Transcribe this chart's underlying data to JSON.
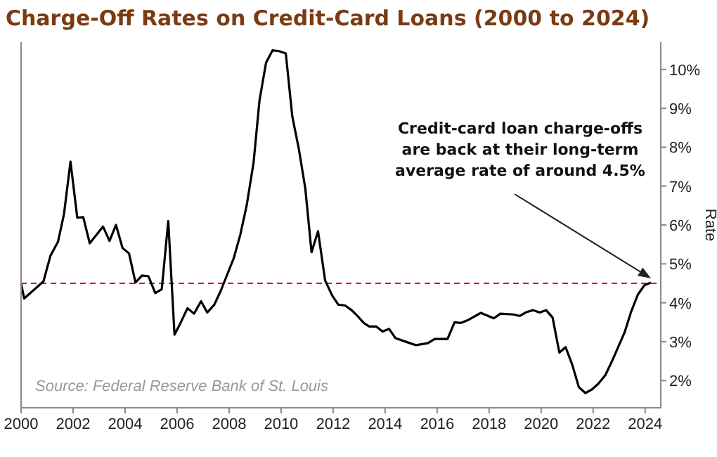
{
  "chart_data": {
    "type": "line",
    "title": "Charge-Off Rates on Credit-Card Loans (2000 to 2024)",
    "ylabel": "Rate",
    "x": [
      2000.0,
      2000.12,
      2000.86,
      2001.13,
      2001.42,
      2001.65,
      2001.9,
      2002.16,
      2002.39,
      2002.64,
      2003.15,
      2003.4,
      2003.65,
      2003.9,
      2004.15,
      2004.4,
      2004.65,
      2004.9,
      2005.16,
      2005.41,
      2005.66,
      2005.9,
      2006.13,
      2006.4,
      2006.65,
      2006.92,
      2007.16,
      2007.43,
      2007.68,
      2008.18,
      2008.43,
      2008.68,
      2008.94,
      2009.17,
      2009.42,
      2009.67,
      2009.92,
      2010.18,
      2010.43,
      2010.68,
      2010.93,
      2011.17,
      2011.42,
      2011.69,
      2011.96,
      2012.2,
      2012.46,
      2012.71,
      2012.94,
      2013.18,
      2013.39,
      2013.66,
      2013.9,
      2014.15,
      2014.4,
      2014.92,
      2015.19,
      2015.64,
      2015.91,
      2016.4,
      2016.67,
      2016.9,
      2017.17,
      2017.68,
      2018.18,
      2018.43,
      2018.93,
      2019.18,
      2019.43,
      2019.69,
      2019.94,
      2020.19,
      2020.44,
      2020.7,
      2020.94,
      2021.2,
      2021.45,
      2021.7,
      2021.95,
      2022.2,
      2022.47,
      2022.74,
      2023.21,
      2023.46,
      2023.72,
      2023.97,
      2024.22
    ],
    "series": [
      {
        "color": "#000000",
        "values": [
          4.49,
          4.11,
          4.55,
          5.21,
          5.57,
          6.28,
          7.63,
          6.19,
          6.2,
          5.53,
          5.96,
          5.59,
          6.0,
          5.41,
          5.27,
          4.52,
          4.7,
          4.68,
          4.25,
          4.35,
          6.1,
          3.18,
          3.48,
          3.86,
          3.72,
          4.04,
          3.75,
          3.95,
          4.31,
          5.15,
          5.75,
          6.52,
          7.6,
          9.21,
          10.17,
          10.49,
          10.47,
          10.41,
          8.79,
          7.96,
          6.94,
          5.3,
          5.84,
          4.58,
          4.19,
          3.95,
          3.93,
          3.81,
          3.66,
          3.48,
          3.39,
          3.39,
          3.26,
          3.33,
          3.09,
          2.97,
          2.91,
          2.96,
          3.07,
          3.07,
          3.5,
          3.48,
          3.55,
          3.74,
          3.6,
          3.72,
          3.7,
          3.66,
          3.76,
          3.81,
          3.75,
          3.81,
          3.62,
          2.72,
          2.86,
          2.4,
          1.83,
          1.68,
          1.77,
          1.92,
          2.14,
          2.52,
          3.24,
          3.77,
          4.21,
          4.45,
          4.52
        ]
      }
    ],
    "xlim": [
      2000,
      2024.6
    ],
    "xticks": [
      2000,
      2002,
      2004,
      2006,
      2008,
      2010,
      2012,
      2014,
      2016,
      2018,
      2020,
      2022,
      2024
    ],
    "ylim": [
      1.3,
      10.7
    ],
    "yticks": [
      {
        "value": 2,
        "label": "2%"
      },
      {
        "value": 3,
        "label": "3%"
      },
      {
        "value": 4,
        "label": "4%"
      },
      {
        "value": 5,
        "label": "5%"
      },
      {
        "value": 6,
        "label": "6%"
      },
      {
        "value": 7,
        "label": "7%"
      },
      {
        "value": 8,
        "label": "8%"
      },
      {
        "value": 9,
        "label": "9%"
      },
      {
        "value": 10,
        "label": "10%"
      }
    ],
    "ref_lines": [
      {
        "axis": "y",
        "value": 4.5,
        "color": "#e00000",
        "line_style": "dashed"
      }
    ],
    "annotations": [
      "Credit-card loan charge-offs\nare back at their long-term\naverage rate of around 4.5%",
      "Source: Federal Reserve Bank of St. Louis"
    ],
    "grid": false,
    "marker": "none",
    "line_style": "solid"
  }
}
